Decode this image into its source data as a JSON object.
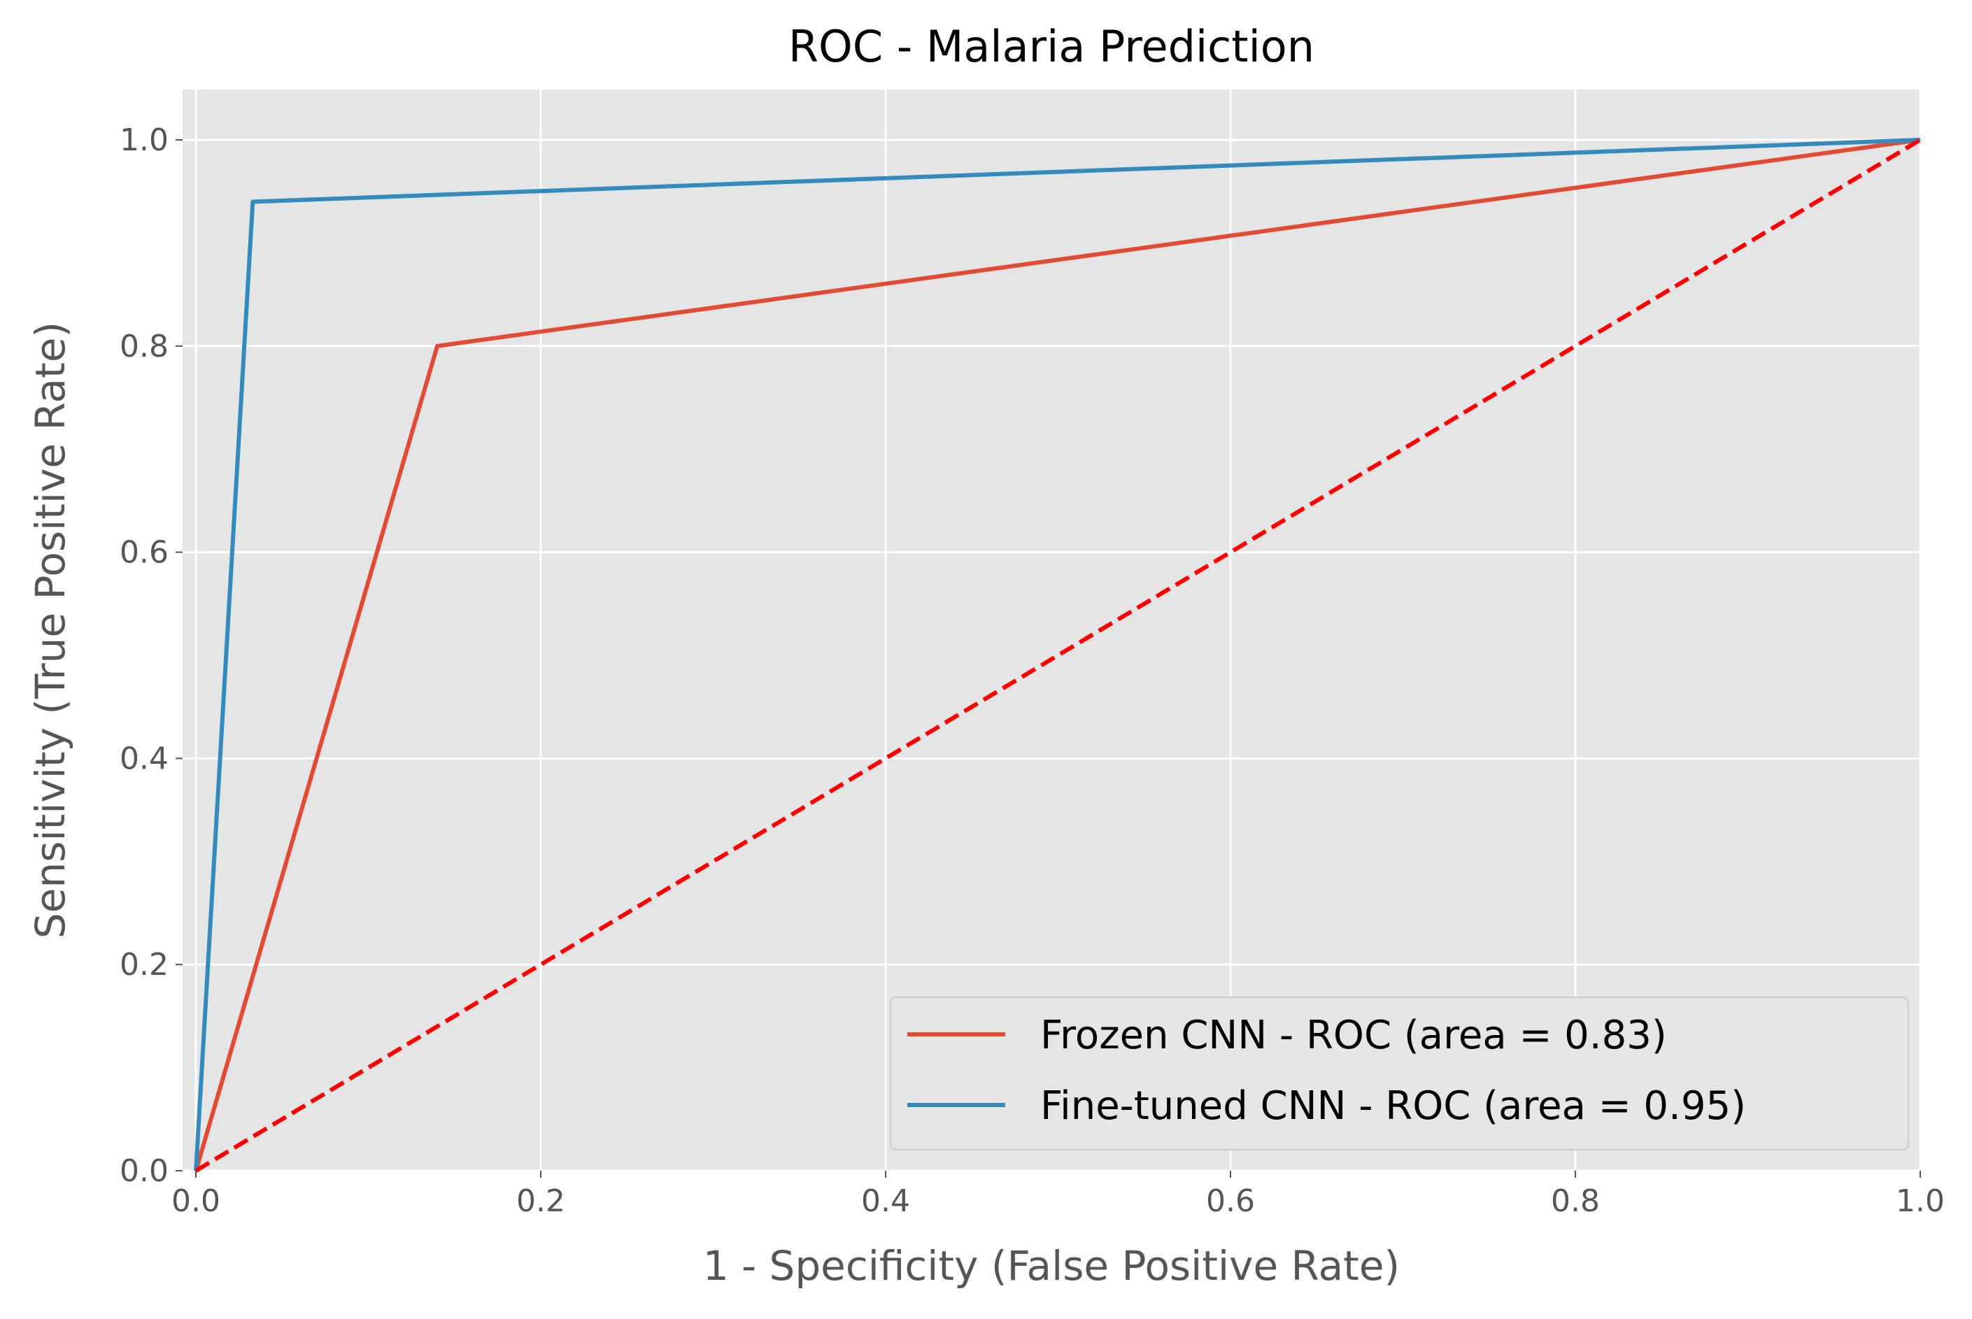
{
  "chart_data": {
    "type": "line",
    "title": "ROC - Malaria Prediction",
    "xlabel": "1 - Specificity (False Positive Rate)",
    "ylabel": "Sensitivity (True Positive Rate)",
    "xlim": [
      0.0,
      1.0
    ],
    "ylim": [
      0.0,
      1.05
    ],
    "xticks": [
      "0.0",
      "0.2",
      "0.4",
      "0.6",
      "0.8",
      "1.0"
    ],
    "yticks": [
      "0.0",
      "0.2",
      "0.4",
      "0.6",
      "0.8",
      "1.0"
    ],
    "grid": true,
    "legend_position": "lower-right",
    "series": [
      {
        "name": "Frozen CNN - ROC (area = 0.83)",
        "color": "#E24A33",
        "x": [
          0.0,
          0.14,
          1.0
        ],
        "y": [
          0.0,
          0.8,
          1.0
        ]
      },
      {
        "name": "Fine-tuned CNN - ROC (area = 0.95)",
        "color": "#348ABD",
        "x": [
          0.0,
          0.033,
          1.0
        ],
        "y": [
          0.0,
          0.94,
          1.0
        ]
      }
    ],
    "reference_line": {
      "color": "#FF0000",
      "style": "dashed",
      "x": [
        0.0,
        1.0
      ],
      "y": [
        0.0,
        1.0
      ]
    }
  }
}
